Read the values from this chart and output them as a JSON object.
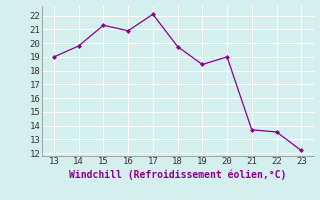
{
  "x_data": [
    13,
    14,
    15,
    16,
    17,
    18,
    19,
    20,
    21,
    22,
    23
  ],
  "y_data": [
    19.0,
    19.8,
    21.3,
    20.9,
    22.1,
    19.75,
    18.45,
    19.0,
    13.7,
    13.55,
    12.2
  ],
  "line_color": "#8b008b",
  "marker": "D",
  "marker_size": 2,
  "bg_color": "#d5eeee",
  "grid_color": "#c0dada",
  "xlabel": "Windchill (Refroidissement éolien,°C)",
  "xlim": [
    12.5,
    23.5
  ],
  "ylim": [
    11.8,
    22.7
  ],
  "xticks": [
    13,
    14,
    15,
    16,
    17,
    18,
    19,
    20,
    21,
    22,
    23
  ],
  "yticks": [
    12,
    13,
    14,
    15,
    16,
    17,
    18,
    19,
    20,
    21,
    22
  ],
  "tick_fontsize": 6.5,
  "label_fontsize": 7.0
}
